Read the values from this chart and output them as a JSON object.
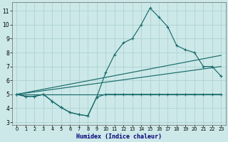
{
  "xlabel": "Humidex (Indice chaleur)",
  "bg_color": "#cce8e8",
  "grid_color": "#aacfcf",
  "line_color": "#1a6b6b",
  "xlim": [
    -0.5,
    23.5
  ],
  "ylim": [
    2.8,
    11.6
  ],
  "xticks": [
    0,
    1,
    2,
    3,
    4,
    5,
    6,
    7,
    8,
    9,
    10,
    11,
    12,
    13,
    14,
    15,
    16,
    17,
    18,
    19,
    20,
    21,
    22,
    23
  ],
  "yticks": [
    3,
    4,
    5,
    6,
    7,
    8,
    9,
    10,
    11
  ],
  "line_zigzag": {
    "x": [
      0,
      1,
      2,
      3,
      4,
      5,
      6,
      7,
      8,
      9,
      10,
      11,
      12,
      13,
      14,
      15,
      16,
      17,
      18,
      19,
      20,
      21,
      22,
      23
    ],
    "y": [
      5.0,
      4.85,
      4.85,
      5.0,
      4.5,
      4.05,
      3.7,
      3.55,
      3.45,
      4.8,
      5.0,
      5.0,
      5.0,
      5.0,
      5.0,
      5.0,
      5.0,
      5.0,
      5.0,
      5.0,
      5.0,
      5.0,
      5.0,
      5.0
    ]
  },
  "line_main": {
    "x": [
      0,
      1,
      2,
      3,
      4,
      5,
      6,
      7,
      8,
      9,
      10,
      11,
      12,
      13,
      14,
      15,
      16,
      17,
      18,
      19,
      20,
      21,
      22,
      23
    ],
    "y": [
      5.0,
      4.85,
      4.85,
      5.0,
      4.5,
      4.05,
      3.7,
      3.55,
      3.45,
      4.8,
      6.55,
      7.85,
      8.7,
      9.0,
      10.0,
      11.2,
      10.55,
      9.85,
      8.5,
      8.2,
      8.0,
      7.0,
      7.0,
      6.3
    ]
  },
  "line_flat": {
    "x": [
      0,
      23
    ],
    "y": [
      5.0,
      5.0
    ]
  },
  "line_diag1": {
    "x": [
      0,
      23
    ],
    "y": [
      5.0,
      7.8
    ]
  },
  "line_diag2": {
    "x": [
      0,
      23
    ],
    "y": [
      5.0,
      7.0
    ]
  }
}
